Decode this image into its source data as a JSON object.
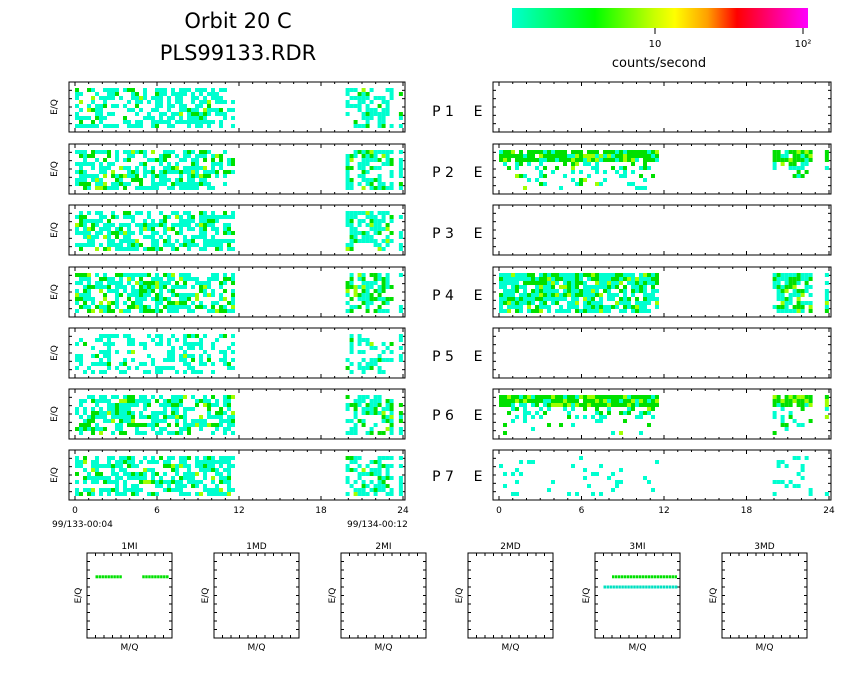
{
  "title": {
    "line1": "Orbit 20 C",
    "line2": "PLS99133.RDR"
  },
  "colorbar": {
    "label": "counts/second",
    "tick_labels": [
      "10",
      "10²"
    ],
    "colors": [
      "#00ffd0",
      "#00ff00",
      "#c8ff00",
      "#ffff00",
      "#ffa000",
      "#ff0000",
      "#ff0080",
      "#ff00ff"
    ]
  },
  "chart_data": [
    {
      "type": "heatmap",
      "title": "",
      "ylabel": "E/Q",
      "xlim": [
        0,
        24
      ],
      "x_ticks": [
        "0",
        "6",
        "12",
        "18",
        "24"
      ],
      "start_label": "99/133-00:04",
      "end_label": "99/134-00:12",
      "data_intervals_hours": [
        [
          0,
          11.7
        ],
        [
          19.8,
          23.3
        ],
        [
          23.7,
          24
        ]
      ],
      "panels": [
        {
          "label": "P 1",
          "density": 0.55,
          "green_fraction": 0.15
        },
        {
          "label": "P 2",
          "density": 0.6,
          "green_fraction": 0.3
        },
        {
          "label": "P 3",
          "density": 0.6,
          "green_fraction": 0.25
        },
        {
          "label": "P 4",
          "density": 0.65,
          "green_fraction": 0.35
        },
        {
          "label": "P 5",
          "density": 0.35,
          "green_fraction": 0.1
        },
        {
          "label": "P 6",
          "density": 0.6,
          "green_fraction": 0.3
        },
        {
          "label": "P 7",
          "density": 0.6,
          "green_fraction": 0.2
        }
      ]
    },
    {
      "type": "heatmap",
      "title": "",
      "xlim": [
        0,
        24
      ],
      "x_ticks": [
        "0",
        "6",
        "12",
        "18",
        "24"
      ],
      "data_intervals_hours": [
        [
          0,
          11.6
        ],
        [
          19.9,
          22.8
        ],
        [
          23.7,
          24
        ]
      ],
      "panels": [
        {
          "label": "E",
          "density": 0.0,
          "green_fraction": 0.0
        },
        {
          "label": "E",
          "density": 0.45,
          "green_fraction": 0.35,
          "band": "top"
        },
        {
          "label": "E",
          "density": 0.0,
          "green_fraction": 0.0
        },
        {
          "label": "E",
          "density": 0.75,
          "green_fraction": 0.4,
          "band": "full"
        },
        {
          "label": "E",
          "density": 0.0,
          "green_fraction": 0.0
        },
        {
          "label": "E",
          "density": 0.45,
          "green_fraction": 0.4,
          "band": "top"
        },
        {
          "label": "E",
          "density": 0.12,
          "green_fraction": 0.0,
          "band": "sparse"
        }
      ]
    },
    {
      "type": "scatter",
      "xlabel": "M/Q",
      "ylabel": "E/Q",
      "panels": [
        {
          "title": "1MI",
          "rows": [
            {
              "level": 0.72,
              "color": "#00e000",
              "segments": [
                [
                  0.1,
                  0.4
                ],
                [
                  0.65,
                  0.95
                ]
              ]
            }
          ]
        },
        {
          "title": "1MD",
          "rows": []
        },
        {
          "title": "2MI",
          "rows": []
        },
        {
          "title": "2MD",
          "rows": []
        },
        {
          "title": "3MI",
          "rows": [
            {
              "level": 0.72,
              "color": "#00e000",
              "segments": [
                [
                  0.2,
                  0.95
                ]
              ]
            },
            {
              "level": 0.6,
              "color": "#00e0c0",
              "segments": [
                [
                  0.1,
                  0.95
                ]
              ]
            }
          ]
        },
        {
          "title": "3MD",
          "rows": []
        }
      ]
    }
  ]
}
